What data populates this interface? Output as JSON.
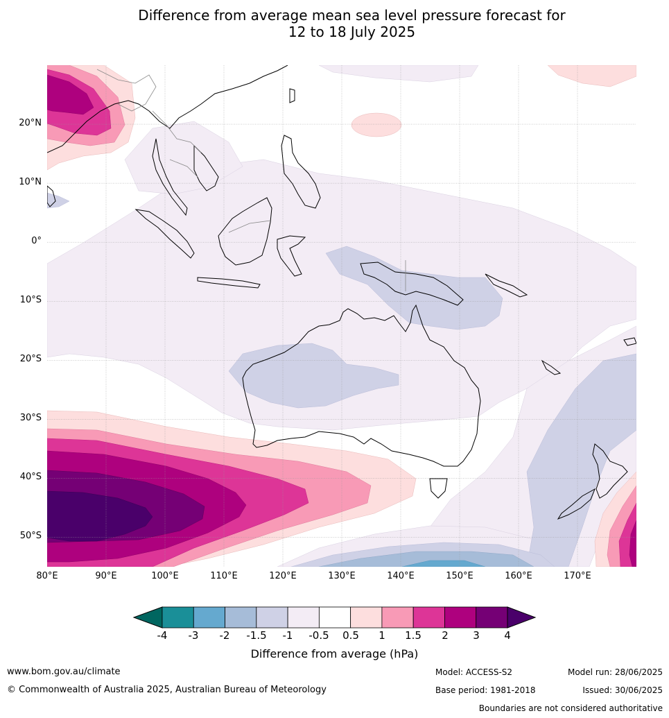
{
  "title_line1": "Difference from average mean sea level pressure forecast for",
  "title_line2": "12 to 18 July 2025",
  "map": {
    "lat_labels": [
      "20°N",
      "10°N",
      "0°",
      "10°S",
      "20°S",
      "30°S",
      "40°S",
      "50°S"
    ],
    "lon_labels": [
      "80°E",
      "90°E",
      "100°E",
      "110°E",
      "120°E",
      "130°E",
      "140°E",
      "150°E",
      "160°E",
      "170°E"
    ],
    "extent": {
      "lon_min": 80,
      "lon_max": 180,
      "lat_min": -55,
      "lat_max": 30
    }
  },
  "colorbar": {
    "tick_labels": [
      "-4",
      "-3",
      "-2",
      "-1.5",
      "-1",
      "-0.5",
      "0.5",
      "1",
      "1.5",
      "2",
      "3",
      "4"
    ],
    "colors": [
      "#1a8f98",
      "#65a9cf",
      "#a6bcd8",
      "#cfd1e6",
      "#f3ecf5",
      "#ffffff",
      "#fddede",
      "#f89ab6",
      "#dd3597",
      "#ae017e",
      "#750075"
    ],
    "extend_low_color": "#006660",
    "extend_high_color": "#4a006a",
    "label": "Difference from average (hPa)"
  },
  "footer": {
    "website": "www.bom.gov.au/climate",
    "copyright": "© Commonwealth of Australia 2025, Australian Bureau of Meteorology",
    "model": "Model: ACCESS-S2",
    "base_period": "Base period: 1981-2018",
    "model_run": "Model run: 28/06/2025",
    "issued": "Issued: 30/06/2025",
    "disclaimer": "Boundaries are not considered authoritative"
  }
}
